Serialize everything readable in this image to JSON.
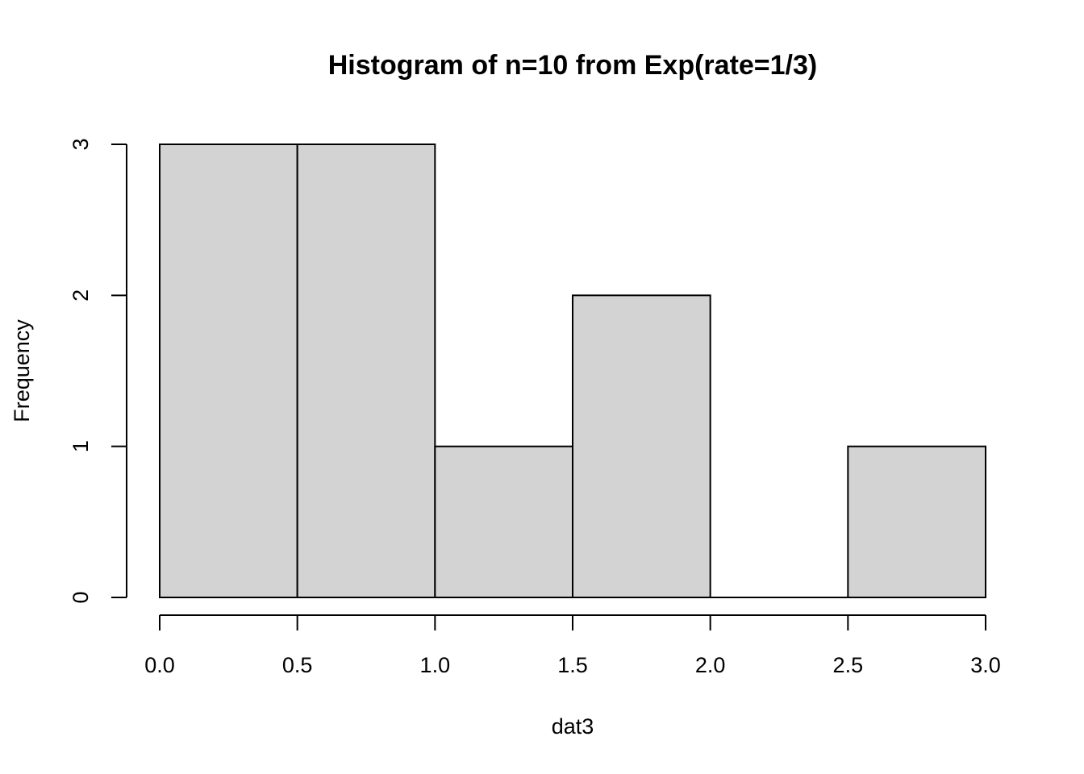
{
  "chart_data": {
    "type": "bar",
    "title": "Histogram of n=10 from Exp(rate=1/3)",
    "xlabel": "dat3",
    "ylabel": "Frequency",
    "bins": [
      {
        "x0": 0.0,
        "x1": 0.5,
        "count": 3
      },
      {
        "x0": 0.5,
        "x1": 1.0,
        "count": 3
      },
      {
        "x0": 1.0,
        "x1": 1.5,
        "count": 1
      },
      {
        "x0": 1.5,
        "x1": 2.0,
        "count": 2
      },
      {
        "x0": 2.0,
        "x1": 2.5,
        "count": 0
      },
      {
        "x0": 2.5,
        "x1": 3.0,
        "count": 1
      }
    ],
    "xlim": [
      0,
      3
    ],
    "ylim": [
      0,
      3
    ],
    "x_ticks": [
      "0.0",
      "0.5",
      "1.0",
      "1.5",
      "2.0",
      "2.5",
      "3.0"
    ],
    "y_ticks": [
      "0",
      "1",
      "2",
      "3"
    ],
    "grid": false,
    "bar_color": "#d3d3d3",
    "edge_color": "#000000"
  }
}
